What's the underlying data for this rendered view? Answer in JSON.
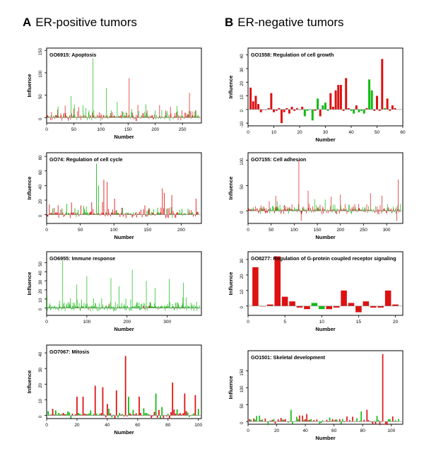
{
  "columns": [
    {
      "letter": "A",
      "title": "ER-positive tumors"
    },
    {
      "letter": "B",
      "title": "ER-negative tumors"
    }
  ],
  "colors": {
    "up": "#dd1111",
    "down": "#11bb11",
    "axis": "#000000",
    "baseline": "#888888"
  },
  "chart_data": [
    {
      "type": "bar",
      "title": "GO6915: Apoptosis",
      "xlabel": "Number",
      "ylabel": "Influence",
      "xlim": [
        0,
        285
      ],
      "ylim": [
        -12,
        155
      ],
      "xticks": [
        0,
        50,
        100,
        150,
        200,
        250
      ],
      "yticks": [
        0,
        50,
        100,
        150
      ],
      "n_bars": 282,
      "spike_style": "thin",
      "baseline_at": 0,
      "highlights": [
        {
          "x": 85,
          "value": 132,
          "color": "down"
        },
        {
          "x": 152,
          "value": 88,
          "color": "up"
        },
        {
          "x": 110,
          "value": 66,
          "color": "down"
        },
        {
          "x": 263,
          "value": 55,
          "color": "up"
        },
        {
          "x": 45,
          "value": 48,
          "color": "down"
        },
        {
          "x": 130,
          "value": 35,
          "color": "down"
        },
        {
          "x": 183,
          "value": 30,
          "color": "down"
        },
        {
          "x": 208,
          "value": 28,
          "color": "up"
        },
        {
          "x": 228,
          "value": 24,
          "color": "up"
        },
        {
          "x": 72,
          "value": 22,
          "color": "down"
        },
        {
          "x": 20,
          "value": 18,
          "color": "up"
        }
      ]
    },
    {
      "type": "bar",
      "title": "GO74: Regulation of cell cycle",
      "xlabel": "Number",
      "ylabel": "Influence",
      "xlim": [
        0,
        230
      ],
      "ylim": [
        -12,
        85
      ],
      "xticks": [
        0,
        50,
        100,
        150,
        200
      ],
      "yticks": [
        0,
        20,
        40,
        60,
        80
      ],
      "n_bars": 225,
      "spike_style": "thin",
      "baseline_at": 0,
      "highlights": [
        {
          "x": 74,
          "value": 70,
          "color": "down"
        },
        {
          "x": 85,
          "value": 48,
          "color": "up"
        },
        {
          "x": 90,
          "value": 45,
          "color": "up"
        },
        {
          "x": 77,
          "value": 40,
          "color": "down"
        },
        {
          "x": 172,
          "value": 36,
          "color": "up"
        },
        {
          "x": 175,
          "value": 30,
          "color": "up"
        },
        {
          "x": 186,
          "value": 27,
          "color": "up"
        },
        {
          "x": 101,
          "value": 22,
          "color": "up"
        },
        {
          "x": 222,
          "value": 22,
          "color": "up"
        },
        {
          "x": 30,
          "value": 15,
          "color": "down"
        },
        {
          "x": 55,
          "value": 12,
          "color": "down"
        }
      ]
    },
    {
      "type": "bar",
      "title": "GO6955: Immune response",
      "xlabel": "Number",
      "ylabel": "Influence",
      "xlim": [
        0,
        385
      ],
      "ylim": [
        -8,
        62
      ],
      "xticks": [
        0,
        100,
        200,
        300
      ],
      "yticks": [
        0,
        10,
        20,
        30,
        40,
        50
      ],
      "n_bars": 380,
      "spike_style": "thin",
      "baseline_at": 0,
      "highlights": [
        {
          "x": 40,
          "value": 52,
          "color": "down"
        },
        {
          "x": 213,
          "value": 42,
          "color": "down"
        },
        {
          "x": 100,
          "value": 35,
          "color": "down"
        },
        {
          "x": 160,
          "value": 33,
          "color": "down"
        },
        {
          "x": 305,
          "value": 32,
          "color": "down"
        },
        {
          "x": 248,
          "value": 30,
          "color": "down"
        },
        {
          "x": 340,
          "value": 28,
          "color": "down"
        },
        {
          "x": 75,
          "value": 26,
          "color": "down"
        },
        {
          "x": 180,
          "value": 24,
          "color": "down"
        },
        {
          "x": 270,
          "value": 22,
          "color": "down"
        }
      ]
    },
    {
      "type": "bar",
      "title": "GO7067: Mitosis",
      "xlabel": "Number",
      "ylabel": "Influence",
      "xlim": [
        0,
        102
      ],
      "ylim": [
        -2,
        45
      ],
      "xticks": [
        0,
        20,
        40,
        60,
        80,
        100
      ],
      "yticks": [
        0,
        10,
        20,
        30,
        40
      ],
      "n_bars": 100,
      "spike_style": "bar",
      "baseline_at": 0,
      "highlights": [
        {
          "x": 52,
          "value": 38,
          "color": "up"
        },
        {
          "x": 83,
          "value": 21,
          "color": "up"
        },
        {
          "x": 32,
          "value": 19,
          "color": "up"
        },
        {
          "x": 37,
          "value": 18,
          "color": "up"
        },
        {
          "x": 46,
          "value": 16,
          "color": "up"
        },
        {
          "x": 91,
          "value": 14,
          "color": "up"
        },
        {
          "x": 72,
          "value": 14,
          "color": "down"
        },
        {
          "x": 98,
          "value": 13,
          "color": "up"
        },
        {
          "x": 20,
          "value": 12,
          "color": "up"
        },
        {
          "x": 24,
          "value": 12,
          "color": "up"
        },
        {
          "x": 61,
          "value": 12,
          "color": "up"
        },
        {
          "x": 54,
          "value": 12,
          "color": "down"
        }
      ]
    },
    {
      "type": "bar",
      "title": "GO1558: Regulation of cell growth",
      "xlabel": "Number",
      "ylabel": "Influence",
      "xlim": [
        0,
        60
      ],
      "ylim": [
        -12,
        45
      ],
      "xticks": [
        0,
        10,
        20,
        30,
        40,
        50,
        60
      ],
      "yticks": [
        -10,
        0,
        10,
        20,
        30,
        40
      ],
      "x": [
        1,
        2,
        3,
        4,
        5,
        6,
        7,
        8,
        9,
        10,
        11,
        12,
        13,
        14,
        15,
        16,
        17,
        18,
        19,
        20,
        21,
        22,
        23,
        24,
        25,
        26,
        27,
        28,
        29,
        30,
        31,
        32,
        33,
        34,
        35,
        36,
        37,
        38,
        39,
        40,
        41,
        42,
        43,
        44,
        45,
        46,
        47,
        48,
        49,
        50,
        51,
        52,
        53,
        54,
        55,
        56,
        57
      ],
      "values": [
        16,
        6,
        10,
        4,
        -2,
        0,
        0,
        1,
        12,
        -2,
        -1,
        1,
        -10,
        -2,
        1,
        -3,
        2,
        -1,
        1,
        0,
        2,
        -5,
        -1,
        0,
        -8,
        -1,
        8,
        -5,
        3,
        5,
        -1,
        12,
        2,
        14,
        18,
        18,
        -1,
        23,
        1,
        -1,
        -3,
        3,
        -2,
        -1,
        -3,
        1,
        22,
        14,
        -1,
        10,
        -1,
        37,
        1,
        8,
        -1,
        3,
        1
      ],
      "colors": [
        "up",
        "up",
        "up",
        "up",
        "up",
        "up",
        "up",
        "up",
        "up",
        "up",
        "up",
        "up",
        "up",
        "up",
        "up",
        "up",
        "up",
        "up",
        "up",
        "up",
        "up",
        "down",
        "down",
        "down",
        "down",
        "up",
        "down",
        "up",
        "down",
        "down",
        "down",
        "up",
        "up",
        "up",
        "up",
        "up",
        "up",
        "up",
        "up",
        "down",
        "down",
        "up",
        "down",
        "down",
        "down",
        "up",
        "down",
        "down",
        "up",
        "up",
        "up",
        "up",
        "down",
        "up",
        "up",
        "up",
        "up"
      ],
      "spike_style": "bar",
      "baseline_at": 0
    },
    {
      "type": "bar",
      "title": "GO7155: Cell adhesion",
      "xlabel": "Number",
      "ylabel": "Influence",
      "xlim": [
        0,
        335
      ],
      "ylim": [
        -25,
        115
      ],
      "xticks": [
        0,
        50,
        100,
        150,
        200,
        250,
        300
      ],
      "yticks": [
        0,
        50,
        100
      ],
      "n_bars": 330,
      "spike_style": "thin",
      "baseline_at": 0,
      "highlights": [
        {
          "x": 110,
          "value": 100,
          "color": "up"
        },
        {
          "x": 325,
          "value": 62,
          "color": "up"
        },
        {
          "x": 130,
          "value": 40,
          "color": "up"
        },
        {
          "x": 265,
          "value": 35,
          "color": "up"
        },
        {
          "x": 60,
          "value": 30,
          "color": "up"
        },
        {
          "x": 200,
          "value": 32,
          "color": "up"
        },
        {
          "x": 180,
          "value": 28,
          "color": "up"
        },
        {
          "x": 290,
          "value": 30,
          "color": "up"
        },
        {
          "x": 115,
          "value": -20,
          "color": "up"
        },
        {
          "x": 322,
          "value": -20,
          "color": "up"
        }
      ]
    },
    {
      "type": "bar",
      "title": "GO8277: Regulation of G-protein coupled receptor signaling",
      "xlabel": "Number",
      "ylabel": "Influence",
      "xlim": [
        0,
        21
      ],
      "ylim": [
        -6,
        35
      ],
      "xticks": [
        0,
        5,
        10,
        15,
        20
      ],
      "yticks": [
        0,
        10,
        20,
        30
      ],
      "x": [
        1,
        2,
        3,
        4,
        5,
        6,
        7,
        8,
        9,
        10,
        11,
        12,
        13,
        14,
        15,
        16,
        17,
        18,
        19,
        20
      ],
      "values": [
        25,
        0,
        1,
        32,
        6,
        3,
        -1,
        -2,
        2,
        -2,
        -2,
        -1,
        10,
        2,
        -4,
        3,
        -1,
        -1,
        10,
        1
      ],
      "colors": [
        "up",
        "up",
        "up",
        "up",
        "up",
        "up",
        "up",
        "up",
        "down",
        "down",
        "up",
        "up",
        "up",
        "up",
        "up",
        "up",
        "up",
        "up",
        "up",
        "up"
      ],
      "spike_style": "bar",
      "baseline_at": 0
    },
    {
      "type": "bar",
      "title": "GO1501: Skeletal development",
      "xlabel": "Number",
      "ylabel": "Influence",
      "xlim": [
        0,
        108
      ],
      "ylim": [
        -8,
        210
      ],
      "xticks": [
        0,
        20,
        40,
        60,
        80,
        100
      ],
      "yticks": [
        0,
        50,
        100,
        150
      ],
      "n_bars": 105,
      "spike_style": "bar",
      "baseline_at": 0,
      "highlights": [
        {
          "x": 94,
          "value": 200,
          "color": "up"
        },
        {
          "x": 83,
          "value": 35,
          "color": "up"
        },
        {
          "x": 41,
          "value": 22,
          "color": "up"
        },
        {
          "x": 69,
          "value": 15,
          "color": "up"
        },
        {
          "x": 101,
          "value": 15,
          "color": "up"
        },
        {
          "x": 12,
          "value": 9,
          "color": "up"
        },
        {
          "x": 57,
          "value": 12,
          "color": "down"
        },
        {
          "x": 24,
          "value": 6,
          "color": "down"
        }
      ]
    }
  ]
}
